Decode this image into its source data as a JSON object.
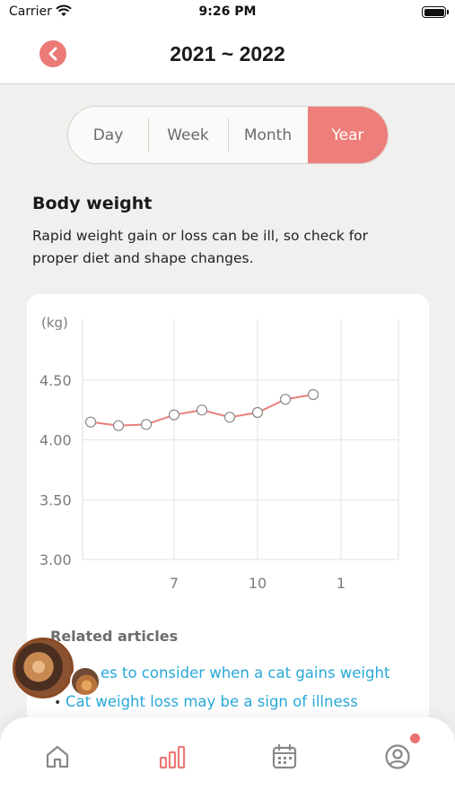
{
  "status_bar": {
    "carrier": "Carrier",
    "time": "9:26 PM"
  },
  "nav": {
    "title": "2021 ~ 2022",
    "back_icon": "chevron-left-icon",
    "accent_color": "#ec7a76"
  },
  "period_tabs": [
    {
      "label": "Day",
      "active": false
    },
    {
      "label": "Week",
      "active": false
    },
    {
      "label": "Month",
      "active": false
    },
    {
      "label": "Year",
      "active": true
    }
  ],
  "section": {
    "title": "Body weight",
    "description": "Rapid weight gain or loss can be ill, so check for proper diet and shape changes."
  },
  "chart_data": {
    "type": "line",
    "ylabel": "(kg)",
    "ylim": [
      3.0,
      4.5
    ],
    "y_ticks": [
      "4.50",
      "4.00",
      "3.50",
      "3.00"
    ],
    "x_ticks": [
      "7",
      "10",
      "1"
    ],
    "grid": true,
    "series": [
      {
        "color": "#e8807b",
        "values": [
          4.15,
          4.12,
          4.13,
          4.21,
          4.25,
          4.19,
          4.23,
          4.34,
          4.38
        ]
      }
    ]
  },
  "related": {
    "title": "Related articles",
    "articles": [
      {
        "text": "es to consider when a cat gains weight"
      },
      {
        "text": "Cat weight loss may be a sign of illness"
      }
    ]
  },
  "tabbar": {
    "items": [
      {
        "icon": "home-icon",
        "active": false
      },
      {
        "icon": "bar-chart-icon",
        "active": true
      },
      {
        "icon": "calendar-icon",
        "active": false
      },
      {
        "icon": "profile-icon",
        "active": false
      }
    ],
    "active_color": "#ec7a76",
    "inactive_color": "#8a8886"
  }
}
